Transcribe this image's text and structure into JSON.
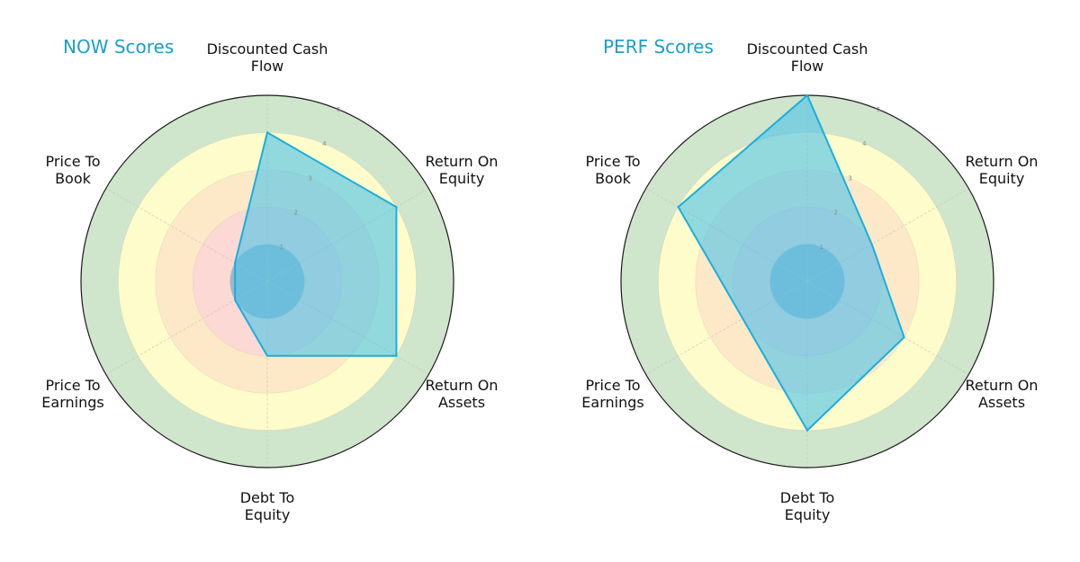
{
  "chart_data": [
    {
      "type": "radar",
      "title": "NOW Scores",
      "categories": [
        "Discounted Cash Flow",
        "Return On Equity",
        "Return On Assets",
        "Debt To Equity",
        "Price To Earnings",
        "Price To Book"
      ],
      "series": [
        {
          "name": "NOW",
          "values": [
            4,
            4,
            4,
            2,
            1,
            1
          ]
        }
      ],
      "rlim": [
        0,
        5
      ],
      "rticks": [
        1,
        2,
        3,
        4,
        5
      ],
      "grid": true,
      "legend": null
    },
    {
      "type": "radar",
      "title": "PERF Scores",
      "categories": [
        "Discounted Cash Flow",
        "Return On Equity",
        "Return On Assets",
        "Debt To Equity",
        "Price To Earnings",
        "Price To Book"
      ],
      "series": [
        {
          "name": "PERF",
          "values": [
            5,
            2,
            3,
            4,
            2,
            4
          ]
        }
      ],
      "rlim": [
        0,
        5
      ],
      "rticks": [
        1,
        2,
        3,
        4,
        5
      ],
      "grid": true,
      "legend": null
    }
  ],
  "charts": [
    {
      "title": "NOW Scores",
      "labels": [
        [
          "Discounted Cash",
          "Flow"
        ],
        [
          "Return On",
          "Equity"
        ],
        [
          "Return On",
          "Assets"
        ],
        [
          "Debt To",
          "Equity"
        ],
        [
          "Price To",
          "Earnings"
        ],
        [
          "Price To",
          "Book"
        ]
      ],
      "values": [
        4,
        4,
        4,
        2,
        1,
        1
      ]
    },
    {
      "title": "PERF Scores",
      "labels": [
        [
          "Discounted Cash",
          "Flow"
        ],
        [
          "Return On",
          "Equity"
        ],
        [
          "Return On",
          "Assets"
        ],
        [
          "Debt To",
          "Equity"
        ],
        [
          "Price To",
          "Earnings"
        ],
        [
          "Price To",
          "Book"
        ]
      ],
      "values": [
        5,
        2,
        3,
        4,
        2,
        4
      ]
    }
  ],
  "ticks": [
    "1",
    "2",
    "3",
    "4",
    "5"
  ],
  "colors": {
    "title": "#1a9fc9",
    "ring_1": "#9fb6c8",
    "ring_2": "#fcd9d5",
    "ring_3": "#fde9c8",
    "ring_4": "#fefcca",
    "ring_5": "#cfe5cc",
    "polygon_fill": "#4fc3e8",
    "polygon_stroke": "#1aaedd",
    "outer_border": "#1a1a1a",
    "grid": "#c8c8b4"
  }
}
